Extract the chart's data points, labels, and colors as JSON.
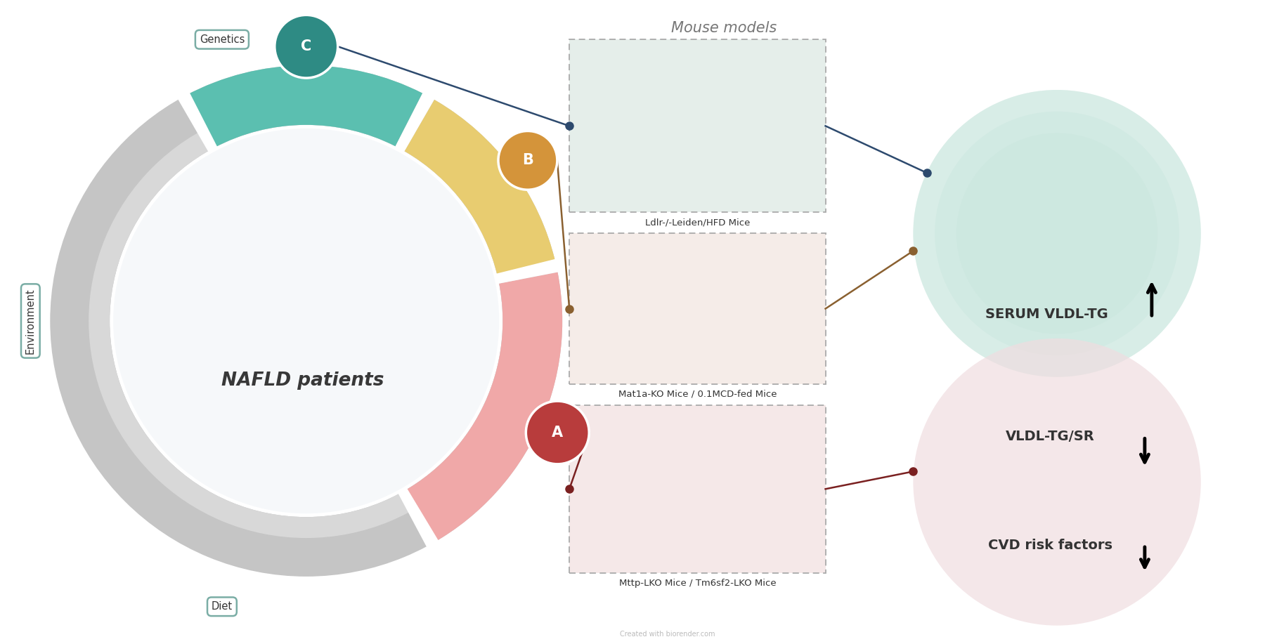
{
  "bg_color": "#ffffff",
  "title_mouse_models": "Mouse models",
  "title_color": "#777777",
  "nafld_text": "NAFLD patients",
  "nafld_text_color": "#383838",
  "label_genetics": "Genetics",
  "label_environment": "Environment",
  "label_diet": "Diet",
  "label_C": "C",
  "label_B": "B",
  "label_A": "A",
  "circle_C_color": "#2e8b84",
  "circle_B_color": "#d4943a",
  "circle_A_color": "#b83c3c",
  "arc_C_color": "#5bbfb0",
  "arc_B_color": "#e8cc70",
  "arc_A_color": "#f0a8a8",
  "arc_outer_gray": "#c5c5c5",
  "arc_outer_gray2": "#d8d8d8",
  "inner_circle_color": "#f0f4f8",
  "line_C_color": "#2d4a6e",
  "line_B_color": "#8a6030",
  "line_A_color": "#7a2020",
  "mouse_box_C_bg": "#e5eeea",
  "mouse_box_B_bg": "#f5ece8",
  "mouse_box_A_bg": "#f5e8e8",
  "mouse_label_C": "Ldlr-/-Leiden/HFD Mice",
  "mouse_label_B": "Mat1a-KO Mice / 0.1MCD-fed Mice",
  "mouse_label_A": "Mttp-LKO Mice / Tm6sf2-LKO Mice",
  "outcome_top_text": "SERUM VLDL-TG",
  "outcome_top_circle_bg": "#cce8e0",
  "outcome_bottom_text1": "VLDL-TG/SR",
  "outcome_bottom_text2": "CVD risk factors",
  "outcome_bottom_circle_bg": "#f0dde0",
  "label_box_edge": "#7aada5",
  "dashed_color": "#aaaaaa",
  "text_dark": "#333333",
  "text_mid": "#666666",
  "footer": "Created with biorender.com"
}
